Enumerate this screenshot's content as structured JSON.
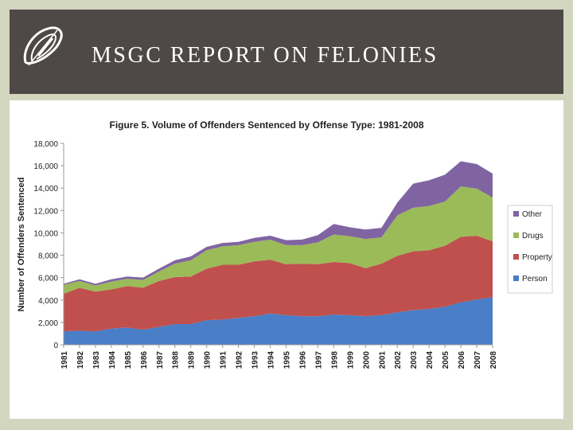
{
  "slide": {
    "title": "MSGC REPORT ON FELONIES",
    "logo_icon": "msgc-logo-icon"
  },
  "colors": {
    "header_bg": "#4e4946",
    "slide_bg": "#d3d6bf",
    "person": "#4a7ec6",
    "property": "#c0504d",
    "drugs": "#9bbb59",
    "other": "#8064a2"
  },
  "chart_data": {
    "type": "area",
    "stacked": true,
    "title": "Figure 5. Volume of Offenders Sentenced by Offense Type: 1981-2008",
    "ylabel": "Number of Offenders Sentenced",
    "xlabel": "",
    "ylim": [
      0,
      18000
    ],
    "yticks": [
      0,
      2000,
      4000,
      6000,
      8000,
      10000,
      12000,
      14000,
      16000,
      18000
    ],
    "ytick_labels": [
      "0",
      "2,000",
      "4,000",
      "6,000",
      "8,000",
      "10,000",
      "12,000",
      "14,000",
      "16,000",
      "18,000"
    ],
    "grid": false,
    "legend_position": "right",
    "x": [
      "1981",
      "1982",
      "1983",
      "1984",
      "1985",
      "1986",
      "1987",
      "1988",
      "1989",
      "1990",
      "1991",
      "1992",
      "1993",
      "1994",
      "1995",
      "1996",
      "1997",
      "1998",
      "1999",
      "2000",
      "2001",
      "2002",
      "2003",
      "2004",
      "2005",
      "2006",
      "2007",
      "2008"
    ],
    "series": [
      {
        "name": "Person",
        "color": "#4a7ec6",
        "values": [
          1200,
          1250,
          1200,
          1450,
          1550,
          1350,
          1600,
          1850,
          1850,
          2200,
          2250,
          2400,
          2550,
          2800,
          2650,
          2550,
          2550,
          2700,
          2650,
          2550,
          2650,
          2900,
          3100,
          3200,
          3400,
          3800,
          4050,
          4250
        ]
      },
      {
        "name": "Property",
        "color": "#c0504d",
        "values": [
          3350,
          3850,
          3550,
          3500,
          3700,
          3750,
          4100,
          4200,
          4250,
          4600,
          4900,
          4750,
          4900,
          4800,
          4550,
          4700,
          4650,
          4700,
          4650,
          4300,
          4600,
          5050,
          5250,
          5250,
          5450,
          5850,
          5700,
          5000
        ]
      },
      {
        "name": "Drugs",
        "color": "#9bbb59",
        "values": [
          800,
          600,
          550,
          700,
          650,
          700,
          850,
          1200,
          1450,
          1650,
          1650,
          1750,
          1750,
          1800,
          1700,
          1650,
          1950,
          2450,
          2400,
          2600,
          2350,
          3600,
          3900,
          3950,
          3950,
          4500,
          4200,
          3900
        ]
      },
      {
        "name": "Other",
        "color": "#8064a2",
        "values": [
          100,
          150,
          150,
          200,
          200,
          200,
          250,
          300,
          350,
          300,
          300,
          300,
          350,
          350,
          450,
          500,
          650,
          950,
          800,
          850,
          850,
          1150,
          2150,
          2300,
          2400,
          2250,
          2200,
          2150
        ]
      }
    ],
    "legend_order": [
      "Other",
      "Drugs",
      "Property",
      "Person"
    ]
  }
}
